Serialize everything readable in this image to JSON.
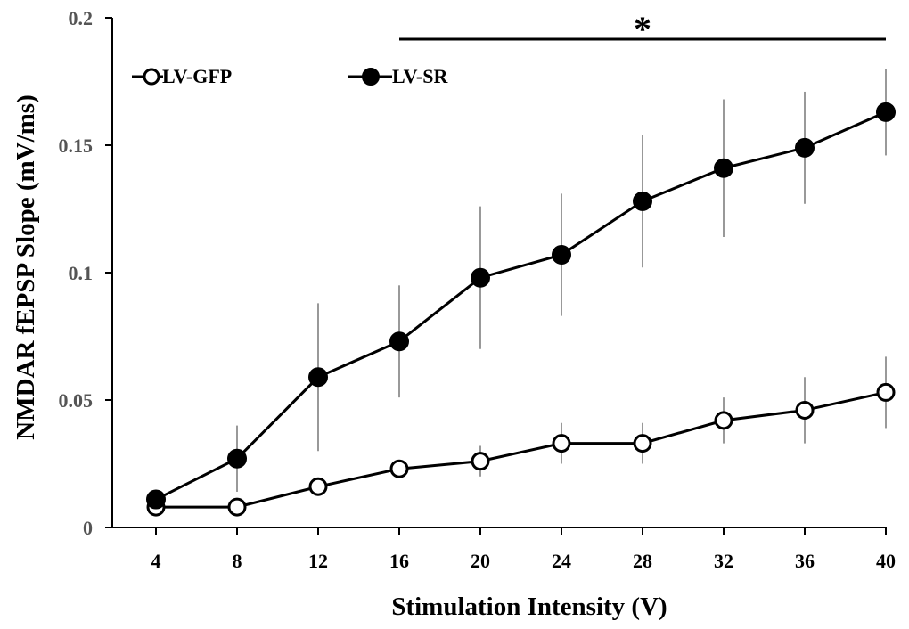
{
  "chart_data": {
    "type": "line",
    "title": "",
    "xlabel": "Stimulation Intensity (V)",
    "ylabel": "NMDAR fEPSP Slope (mV/ms)",
    "categories": [
      4,
      8,
      12,
      16,
      20,
      24,
      28,
      32,
      36,
      40
    ],
    "ylim": [
      0,
      0.2
    ],
    "y_ticks": [
      0,
      0.05,
      0.1,
      0.15,
      0.2
    ],
    "y_tick_labels": [
      "0",
      "0.05",
      "0.1",
      "0.15",
      "0.2"
    ],
    "x_tick_labels": [
      "4",
      "8",
      "12",
      "16",
      "20",
      "24",
      "28",
      "32",
      "36",
      "40"
    ],
    "series": [
      {
        "name": "LV-GFP",
        "marker": "open-circle",
        "values": [
          0.008,
          0.008,
          0.016,
          0.023,
          0.026,
          0.033,
          0.033,
          0.042,
          0.046,
          0.053
        ],
        "errors": [
          0.0,
          0.0,
          0.0,
          0.0,
          0.006,
          0.008,
          0.008,
          0.009,
          0.013,
          0.014
        ]
      },
      {
        "name": "LV-SR",
        "marker": "filled-circle",
        "values": [
          0.011,
          0.027,
          0.059,
          0.073,
          0.098,
          0.107,
          0.128,
          0.141,
          0.149,
          0.163
        ],
        "errors": [
          0.0,
          0.013,
          0.029,
          0.022,
          0.028,
          0.024,
          0.026,
          0.027,
          0.022,
          0.017
        ]
      }
    ],
    "significance": {
      "label": "*",
      "from": 16,
      "to": 40
    },
    "legend_position": "top-left",
    "grid": false
  }
}
